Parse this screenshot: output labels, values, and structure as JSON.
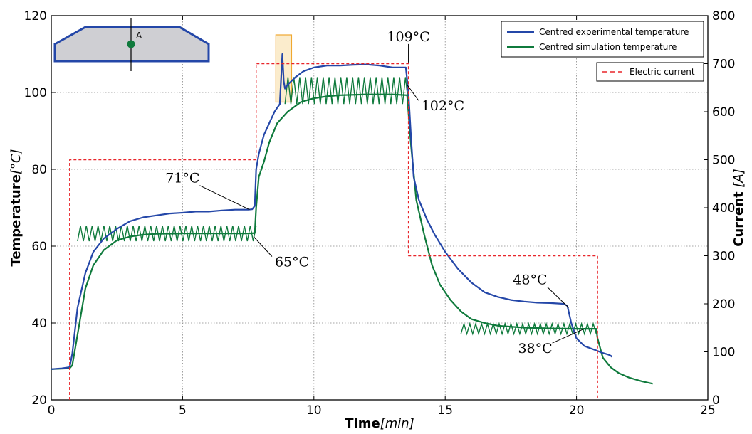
{
  "chart_data": {
    "type": "line",
    "xlabel": {
      "main": "Time",
      "unit": "min"
    },
    "ylabel_left": {
      "main": "Temperature",
      "unit": "°C"
    },
    "ylabel_right": {
      "main": "Current",
      "unit": "A"
    },
    "xlim": [
      0,
      25
    ],
    "ylim_left": [
      20,
      120
    ],
    "ylim_right": [
      0,
      800
    ],
    "x_ticks": [
      "0",
      "5",
      "10",
      "15",
      "20",
      "25"
    ],
    "y_left_ticks": [
      "20",
      "40",
      "60",
      "80",
      "100",
      "120"
    ],
    "y_right_ticks": [
      "0",
      "100",
      "200",
      "300",
      "400",
      "500",
      "600",
      "700",
      "800"
    ],
    "grid": true,
    "legend_upper": {
      "placement": "top-right",
      "entries": [
        "Centred experimental temperature",
        "Centred simulation temperature"
      ]
    },
    "legend_lower": {
      "placement": "top-right",
      "entries": [
        "Electric current"
      ]
    },
    "colors": {
      "experimental": "#2447a8",
      "simulation": "#0f7a3c",
      "current": "#e8252a",
      "highlight_fill": "#fbeccc",
      "highlight_stroke": "#f0a830",
      "inset_fill": "#cfcfd3",
      "inset_stroke": "#2447a8",
      "inset_point": "#0f7a3c"
    },
    "series": [
      {
        "name": "Centred experimental temperature",
        "axis": "left",
        "x": [
          0,
          0.4,
          0.7,
          0.8,
          1.0,
          1.3,
          1.6,
          2.0,
          2.5,
          3.0,
          3.5,
          4.0,
          4.5,
          5.0,
          5.5,
          6.0,
          6.5,
          7.0,
          7.5,
          7.65,
          7.75,
          7.8,
          7.9,
          8.1,
          8.3,
          8.5,
          8.7,
          8.8,
          8.85,
          8.9,
          9.0,
          9.3,
          9.6,
          10.0,
          10.5,
          11.0,
          11.5,
          12.0,
          12.5,
          13.0,
          13.5,
          13.6,
          13.7,
          13.8,
          14.0,
          14.3,
          14.6,
          15.0,
          15.5,
          16.0,
          16.5,
          17.0,
          17.5,
          18.0,
          18.5,
          19.0,
          19.5,
          19.65,
          19.8,
          20.0,
          20.3,
          20.7,
          21.0,
          21.2,
          21.3,
          21.35
        ],
        "y": [
          28.0,
          28.2,
          28.5,
          32.0,
          44.0,
          53.0,
          58.5,
          62.0,
          64.5,
          66.5,
          67.5,
          68.0,
          68.5,
          68.7,
          69.0,
          69.0,
          69.3,
          69.5,
          69.5,
          69.6,
          70.5,
          80.0,
          84.0,
          89.0,
          92.0,
          95.0,
          97.0,
          110.0,
          103.0,
          101.0,
          102.0,
          104.0,
          105.5,
          106.5,
          107.0,
          107.0,
          107.2,
          107.3,
          107.0,
          106.5,
          106.5,
          100.0,
          88.0,
          78.0,
          72.0,
          67.0,
          63.0,
          58.5,
          54.0,
          50.5,
          48.0,
          46.8,
          46.0,
          45.6,
          45.3,
          45.2,
          45.0,
          44.5,
          40.0,
          36.0,
          34.0,
          33.0,
          32.2,
          31.8,
          31.5,
          31.2
        ]
      },
      {
        "name": "Centred simulation temperature",
        "axis": "left",
        "x": [
          0,
          0.7,
          0.8,
          1.0,
          1.3,
          1.6,
          2.0,
          2.5,
          3.0,
          3.5,
          4.0,
          5.0,
          6.0,
          7.0,
          7.5,
          7.75,
          7.8,
          7.9,
          8.1,
          8.3,
          8.6,
          9.0,
          9.5,
          10.0,
          10.5,
          11.0,
          12.0,
          13.0,
          13.55,
          13.7,
          13.9,
          14.2,
          14.5,
          14.8,
          15.2,
          15.6,
          16.0,
          16.5,
          17.0,
          18.0,
          19.0,
          20.0,
          20.5,
          20.75,
          20.8,
          21.0,
          21.3,
          21.6,
          22.0,
          22.5,
          22.9
        ],
        "y": [
          28.0,
          28.2,
          29.0,
          37.0,
          49.0,
          55.0,
          59.0,
          61.5,
          62.5,
          63.0,
          63.2,
          63.3,
          63.3,
          63.3,
          63.3,
          63.4,
          70.0,
          78.0,
          82.0,
          87.0,
          92.0,
          95.0,
          97.5,
          98.5,
          99.0,
          99.3,
          99.5,
          99.5,
          99.3,
          86.0,
          72.0,
          63.0,
          55.0,
          50.0,
          46.0,
          43.0,
          41.0,
          40.0,
          39.3,
          38.8,
          38.6,
          38.5,
          38.5,
          38.5,
          36.0,
          31.0,
          28.5,
          27.0,
          25.8,
          24.8,
          24.2
        ]
      },
      {
        "name": "Electric current",
        "axis": "right",
        "style": "dashed",
        "x": [
          0.7,
          0.7,
          7.8,
          7.8,
          13.6,
          13.6,
          20.8,
          20.8
        ],
        "y": [
          0,
          500,
          500,
          700,
          700,
          300,
          300,
          0
        ]
      }
    ],
    "oscillation_bands": [
      {
        "series": "Centred simulation temperature",
        "x_start": 1.0,
        "x_end": 7.8,
        "low_y": 61.3,
        "high_y": 65.3
      },
      {
        "series": "Centred simulation temperature",
        "x_start": 8.9,
        "x_end": 13.6,
        "low_y": 97.0,
        "high_y": 104.0
      },
      {
        "series": "Centred simulation temperature",
        "x_start": 15.6,
        "x_end": 20.75,
        "low_y": 37.2,
        "high_y": 39.8
      }
    ],
    "highlight_box": {
      "x": [
        8.55,
        9.15
      ],
      "y": [
        97.5,
        115.0
      ]
    },
    "annotations": [
      {
        "label": "71°C",
        "x": 7.55,
        "y": 69.5
      },
      {
        "label": "65°C",
        "x": 7.7,
        "y": 62.5
      },
      {
        "label": "109°C",
        "x": 13.6,
        "y": 107.8
      },
      {
        "label": "102°C",
        "x": 13.55,
        "y": 102.0
      },
      {
        "label": "48°C",
        "x": 19.7,
        "y": 44.0
      },
      {
        "label": "38°C",
        "x": 20.3,
        "y": 38.5
      }
    ],
    "inset": {
      "point_label": "A"
    }
  }
}
